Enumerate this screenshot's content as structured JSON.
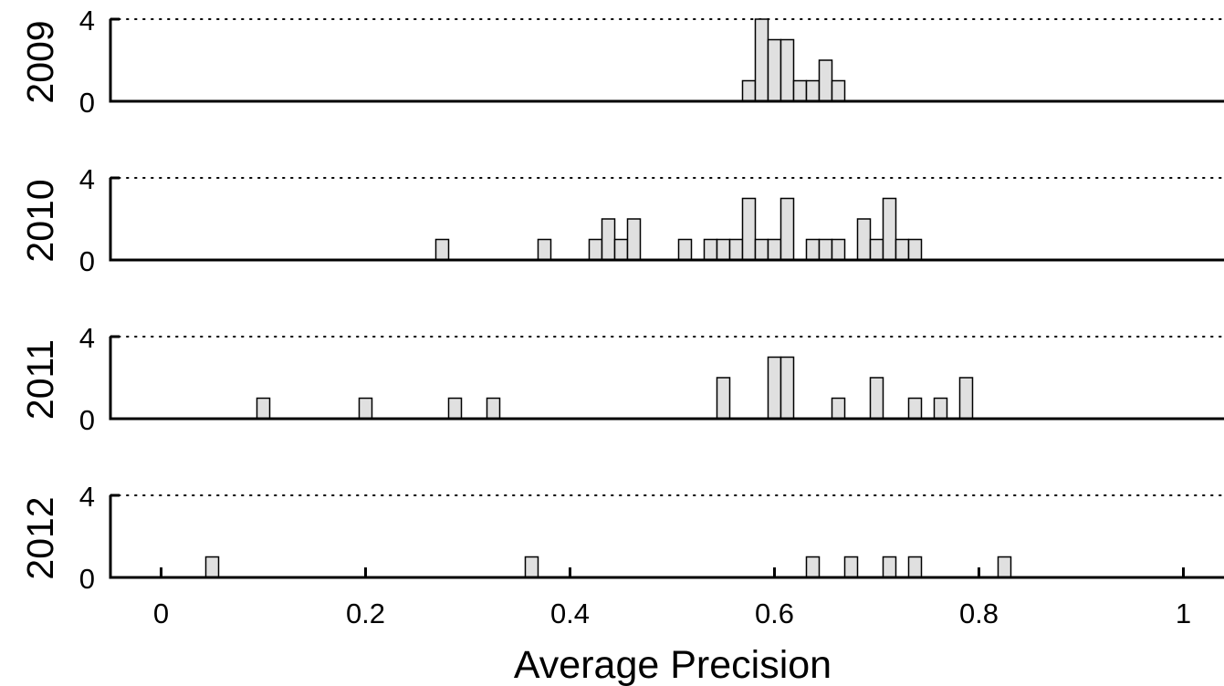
{
  "chart_data": {
    "type": "bar",
    "xlabel": "Average Precision",
    "xlim": [
      -0.05,
      1.05
    ],
    "xticks": [
      0,
      0.2,
      0.4,
      0.6,
      0.8,
      1
    ],
    "xtick_labels": [
      "0",
      "0.2",
      "0.4",
      "0.6",
      "0.8",
      "1"
    ],
    "bin_width": 0.0125,
    "bar_color": "#e0e0e0",
    "panels": [
      {
        "ylabel": "2009",
        "ylim": [
          0,
          4
        ],
        "yticks": [
          0,
          4
        ],
        "ytick_labels": [
          "0",
          "4"
        ],
        "bins": [
          {
            "x": 0.575,
            "count": 1
          },
          {
            "x": 0.5875,
            "count": 4
          },
          {
            "x": 0.6,
            "count": 3
          },
          {
            "x": 0.6125,
            "count": 3
          },
          {
            "x": 0.625,
            "count": 1
          },
          {
            "x": 0.6375,
            "count": 1
          },
          {
            "x": 0.65,
            "count": 2
          },
          {
            "x": 0.6625,
            "count": 1
          }
        ]
      },
      {
        "ylabel": "2010",
        "ylim": [
          0,
          4
        ],
        "yticks": [
          0,
          4
        ],
        "ytick_labels": [
          "0",
          "4"
        ],
        "bins": [
          {
            "x": 0.275,
            "count": 1
          },
          {
            "x": 0.375,
            "count": 1
          },
          {
            "x": 0.425,
            "count": 1
          },
          {
            "x": 0.4375,
            "count": 2
          },
          {
            "x": 0.45,
            "count": 1
          },
          {
            "x": 0.4625,
            "count": 2
          },
          {
            "x": 0.5125,
            "count": 1
          },
          {
            "x": 0.5375,
            "count": 1
          },
          {
            "x": 0.55,
            "count": 1
          },
          {
            "x": 0.5625,
            "count": 1
          },
          {
            "x": 0.575,
            "count": 3
          },
          {
            "x": 0.5875,
            "count": 1
          },
          {
            "x": 0.6,
            "count": 1
          },
          {
            "x": 0.6125,
            "count": 3
          },
          {
            "x": 0.6375,
            "count": 1
          },
          {
            "x": 0.65,
            "count": 1
          },
          {
            "x": 0.6625,
            "count": 1
          },
          {
            "x": 0.6875,
            "count": 2
          },
          {
            "x": 0.7,
            "count": 1
          },
          {
            "x": 0.7125,
            "count": 3
          },
          {
            "x": 0.725,
            "count": 1
          },
          {
            "x": 0.7375,
            "count": 1
          }
        ]
      },
      {
        "ylabel": "2011",
        "ylim": [
          0,
          4
        ],
        "yticks": [
          0,
          4
        ],
        "ytick_labels": [
          "0",
          "4"
        ],
        "bins": [
          {
            "x": 0.1,
            "count": 1
          },
          {
            "x": 0.2,
            "count": 1
          },
          {
            "x": 0.2875,
            "count": 1
          },
          {
            "x": 0.325,
            "count": 1
          },
          {
            "x": 0.55,
            "count": 2
          },
          {
            "x": 0.6,
            "count": 3
          },
          {
            "x": 0.6125,
            "count": 3
          },
          {
            "x": 0.6625,
            "count": 1
          },
          {
            "x": 0.7,
            "count": 2
          },
          {
            "x": 0.7375,
            "count": 1
          },
          {
            "x": 0.7625,
            "count": 1
          },
          {
            "x": 0.7875,
            "count": 2
          }
        ]
      },
      {
        "ylabel": "2012",
        "ylim": [
          0,
          4
        ],
        "yticks": [
          0,
          4
        ],
        "ytick_labels": [
          "0",
          "4"
        ],
        "bins": [
          {
            "x": 0.05,
            "count": 1
          },
          {
            "x": 0.3625,
            "count": 1
          },
          {
            "x": 0.6375,
            "count": 1
          },
          {
            "x": 0.675,
            "count": 1
          },
          {
            "x": 0.7125,
            "count": 1
          },
          {
            "x": 0.7375,
            "count": 1
          },
          {
            "x": 0.825,
            "count": 1
          }
        ]
      }
    ]
  }
}
